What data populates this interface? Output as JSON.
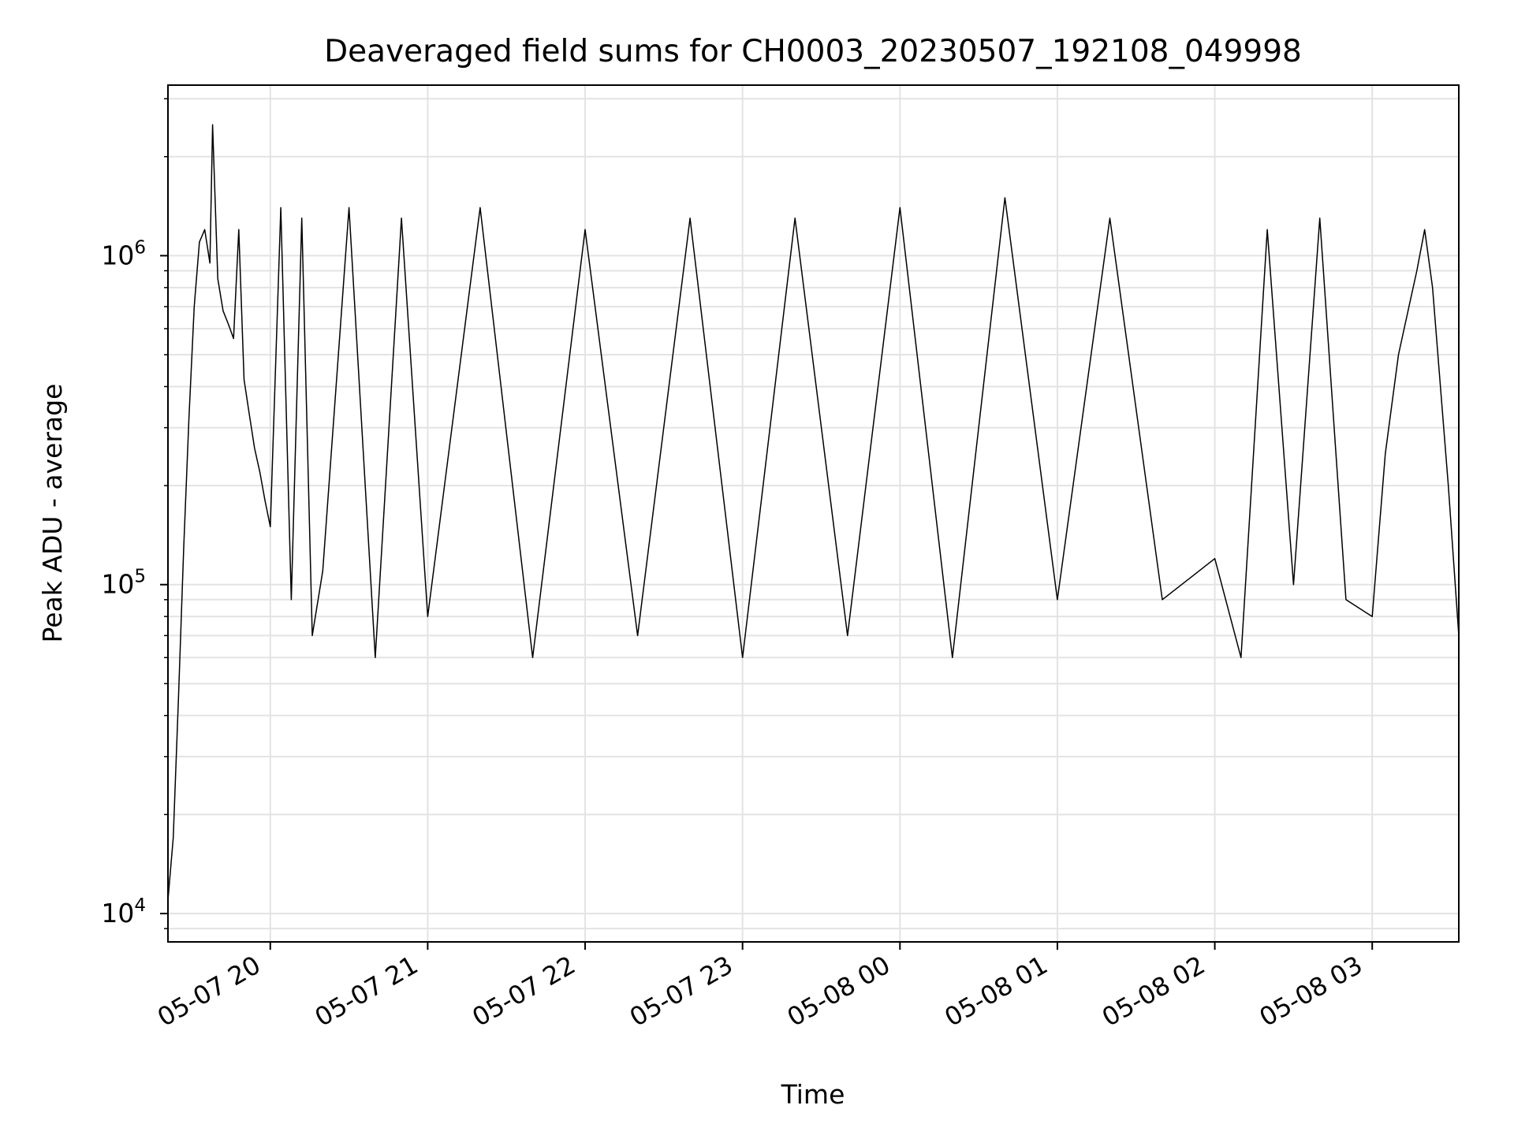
{
  "chart_data": {
    "type": "line",
    "title": "Deaveraged field sums for CH0003_20230507_192108_049998",
    "xlabel": "Time",
    "ylabel": "Peak ADU - average",
    "yscale": "log",
    "ylim": [
      8200,
      3300000
    ],
    "xlim": [
      "2023-05-07 19:21",
      "2023-05-08 03:33"
    ],
    "grid": true,
    "x_ticks": [
      {
        "value": "2023-05-07 20:00",
        "label": "05-07 20"
      },
      {
        "value": "2023-05-07 21:00",
        "label": "05-07 21"
      },
      {
        "value": "2023-05-07 22:00",
        "label": "05-07 22"
      },
      {
        "value": "2023-05-07 23:00",
        "label": "05-07 23"
      },
      {
        "value": "2023-05-08 00:00",
        "label": "05-08 00"
      },
      {
        "value": "2023-05-08 01:00",
        "label": "05-08 01"
      },
      {
        "value": "2023-05-08 02:00",
        "label": "05-08 02"
      },
      {
        "value": "2023-05-08 03:00",
        "label": "05-08 03"
      }
    ],
    "y_ticks": [
      {
        "value": 10000,
        "base": "10",
        "exp": "4"
      },
      {
        "value": 100000,
        "base": "10",
        "exp": "5"
      },
      {
        "value": 1000000,
        "base": "10",
        "exp": "6"
      }
    ],
    "series": [
      {
        "color": "#000000",
        "x": [
          "2023-05-07 19:21",
          "2023-05-07 19:23",
          "2023-05-07 19:25",
          "2023-05-07 19:27",
          "2023-05-07 19:29",
          "2023-05-07 19:31",
          "2023-05-07 19:33",
          "2023-05-07 19:35",
          "2023-05-07 19:37",
          "2023-05-07 19:38",
          "2023-05-07 19:40",
          "2023-05-07 19:42",
          "2023-05-07 19:44",
          "2023-05-07 19:46",
          "2023-05-07 19:48",
          "2023-05-07 19:50",
          "2023-05-07 19:52",
          "2023-05-07 19:54",
          "2023-05-07 19:56",
          "2023-05-07 19:58",
          "2023-05-07 20:00",
          "2023-05-07 20:04",
          "2023-05-07 20:08",
          "2023-05-07 20:12",
          "2023-05-07 20:16",
          "2023-05-07 20:20",
          "2023-05-07 20:30",
          "2023-05-07 20:40",
          "2023-05-07 20:50",
          "2023-05-07 21:00",
          "2023-05-07 21:20",
          "2023-05-07 21:40",
          "2023-05-07 22:00",
          "2023-05-07 22:20",
          "2023-05-07 22:40",
          "2023-05-07 23:00",
          "2023-05-07 23:20",
          "2023-05-07 23:40",
          "2023-05-08 00:00",
          "2023-05-08 00:20",
          "2023-05-08 00:40",
          "2023-05-08 01:00",
          "2023-05-08 01:20",
          "2023-05-08 01:40",
          "2023-05-08 02:00",
          "2023-05-08 02:10",
          "2023-05-08 02:20",
          "2023-05-08 02:30",
          "2023-05-08 02:40",
          "2023-05-08 02:50",
          "2023-05-08 03:00",
          "2023-05-08 03:05",
          "2023-05-08 03:10",
          "2023-05-08 03:14",
          "2023-05-08 03:17",
          "2023-05-08 03:20",
          "2023-05-08 03:23",
          "2023-05-08 03:26",
          "2023-05-08 03:29",
          "2023-05-08 03:33"
        ],
        "y": [
          11000,
          17000,
          45000,
          130000,
          320000,
          700000,
          1100000,
          1200000,
          950000,
          2500000,
          850000,
          680000,
          620000,
          560000,
          1200000,
          420000,
          330000,
          260000,
          220000,
          180000,
          150000,
          1400000,
          90000,
          1300000,
          70000,
          110000,
          1400000,
          60000,
          1300000,
          80000,
          1400000,
          60000,
          1200000,
          70000,
          1300000,
          60000,
          1300000,
          70000,
          1400000,
          60000,
          1500000,
          90000,
          1300000,
          90000,
          120000,
          60000,
          1200000,
          100000,
          1300000,
          90000,
          80000,
          250000,
          500000,
          700000,
          900000,
          1200000,
          800000,
          400000,
          200000,
          70000
        ]
      }
    ]
  }
}
